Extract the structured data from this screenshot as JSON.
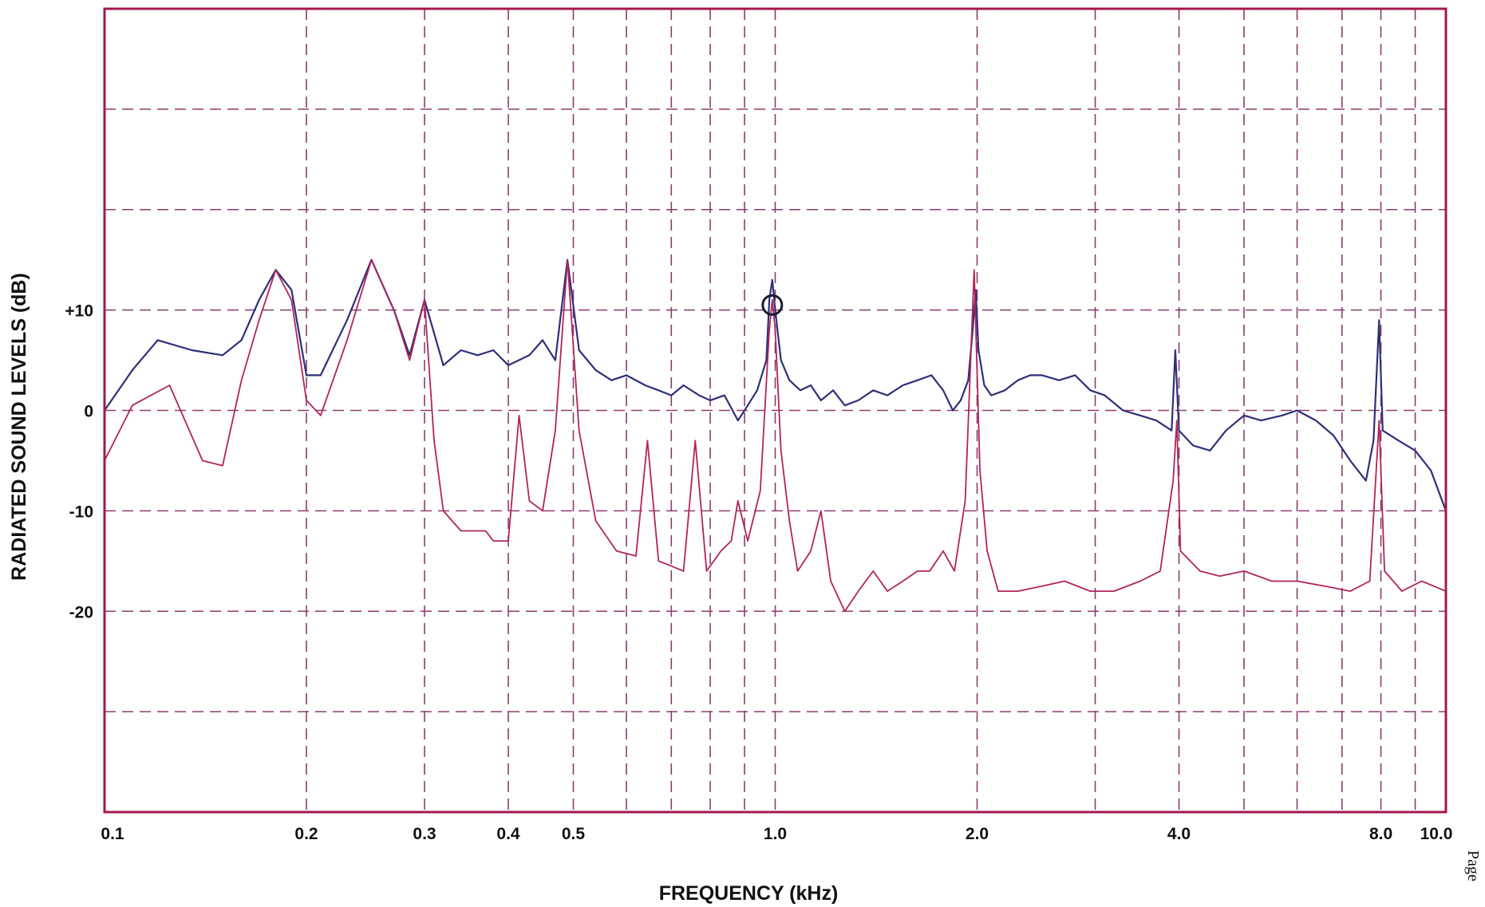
{
  "chart_data": {
    "type": "line",
    "xlabel": "FREQUENCY (kHz)",
    "ylabel": "RADIATED SOUND LEVELS (dB)",
    "x_scale": "log",
    "xlim": [
      0.1,
      10.0
    ],
    "ylim": [
      -40,
      40
    ],
    "grid": true,
    "legend": "none",
    "x_ticks": [
      {
        "value": 0.1,
        "label": "0.1"
      },
      {
        "value": 0.2,
        "label": "0.2"
      },
      {
        "value": 0.3,
        "label": "0.3"
      },
      {
        "value": 0.4,
        "label": "0.4"
      },
      {
        "value": 0.5,
        "label": "0.5"
      },
      {
        "value": 1.0,
        "label": "1.0"
      },
      {
        "value": 2.0,
        "label": "2.0"
      },
      {
        "value": 4.0,
        "label": "4.0"
      },
      {
        "value": 8.0,
        "label": "8.0"
      },
      {
        "value": 10.0,
        "label": "10.0"
      }
    ],
    "x_gridlines": [
      0.2,
      0.3,
      0.4,
      0.5,
      0.6,
      0.7,
      0.8,
      0.9,
      1.0,
      2.0,
      3.0,
      4.0,
      5.0,
      6.0,
      7.0,
      8.0,
      9.0
    ],
    "y_ticks": [
      {
        "value": 10,
        "label": "+10"
      },
      {
        "value": 0,
        "label": "0"
      },
      {
        "value": -10,
        "label": "-10"
      },
      {
        "value": -20,
        "label": "-20"
      }
    ],
    "y_gridlines": [
      30,
      20,
      10,
      0,
      -10,
      -20,
      -30
    ],
    "series": [
      {
        "color": "#2e2f78",
        "points": [
          [
            0.1,
            0
          ],
          [
            0.11,
            4
          ],
          [
            0.12,
            7
          ],
          [
            0.135,
            6
          ],
          [
            0.15,
            5.5
          ],
          [
            0.16,
            7
          ],
          [
            0.17,
            11
          ],
          [
            0.18,
            14
          ],
          [
            0.19,
            12
          ],
          [
            0.2,
            3.5
          ],
          [
            0.21,
            3.5
          ],
          [
            0.23,
            9
          ],
          [
            0.25,
            15
          ],
          [
            0.27,
            10
          ],
          [
            0.285,
            5.5
          ],
          [
            0.3,
            11
          ],
          [
            0.32,
            4.5
          ],
          [
            0.34,
            6
          ],
          [
            0.36,
            5.5
          ],
          [
            0.38,
            6
          ],
          [
            0.4,
            4.5
          ],
          [
            0.43,
            5.5
          ],
          [
            0.45,
            7
          ],
          [
            0.47,
            5
          ],
          [
            0.49,
            15
          ],
          [
            0.51,
            6
          ],
          [
            0.54,
            4
          ],
          [
            0.57,
            3
          ],
          [
            0.6,
            3.5
          ],
          [
            0.64,
            2.5
          ],
          [
            0.67,
            2
          ],
          [
            0.7,
            1.5
          ],
          [
            0.73,
            2.5
          ],
          [
            0.77,
            1.5
          ],
          [
            0.8,
            1
          ],
          [
            0.84,
            1.5
          ],
          [
            0.88,
            -1
          ],
          [
            0.91,
            0.5
          ],
          [
            0.94,
            2
          ],
          [
            0.97,
            5
          ],
          [
            0.98,
            11
          ],
          [
            0.99,
            13
          ],
          [
            1.0,
            10
          ],
          [
            1.02,
            5
          ],
          [
            1.05,
            3
          ],
          [
            1.09,
            2
          ],
          [
            1.13,
            2.5
          ],
          [
            1.17,
            1
          ],
          [
            1.22,
            2
          ],
          [
            1.27,
            0.5
          ],
          [
            1.33,
            1
          ],
          [
            1.4,
            2
          ],
          [
            1.47,
            1.5
          ],
          [
            1.55,
            2.5
          ],
          [
            1.63,
            3
          ],
          [
            1.71,
            3.5
          ],
          [
            1.78,
            2
          ],
          [
            1.84,
            0
          ],
          [
            1.89,
            1
          ],
          [
            1.94,
            3
          ],
          [
            1.97,
            8
          ],
          [
            1.99,
            12
          ],
          [
            2.01,
            6
          ],
          [
            2.05,
            2.5
          ],
          [
            2.1,
            1.5
          ],
          [
            2.2,
            2
          ],
          [
            2.3,
            3
          ],
          [
            2.4,
            3.5
          ],
          [
            2.5,
            3.5
          ],
          [
            2.65,
            3
          ],
          [
            2.8,
            3.5
          ],
          [
            2.95,
            2
          ],
          [
            3.1,
            1.5
          ],
          [
            3.3,
            0
          ],
          [
            3.5,
            -0.5
          ],
          [
            3.7,
            -1
          ],
          [
            3.9,
            -2
          ],
          [
            3.95,
            6
          ],
          [
            4.0,
            -2
          ],
          [
            4.2,
            -3.5
          ],
          [
            4.45,
            -4
          ],
          [
            4.7,
            -2
          ],
          [
            5.0,
            -0.5
          ],
          [
            5.3,
            -1
          ],
          [
            5.7,
            -0.5
          ],
          [
            6.0,
            0
          ],
          [
            6.4,
            -1
          ],
          [
            6.8,
            -2.5
          ],
          [
            7.2,
            -5
          ],
          [
            7.6,
            -7
          ],
          [
            7.8,
            -3
          ],
          [
            7.95,
            9
          ],
          [
            8.05,
            -2
          ],
          [
            8.5,
            -3
          ],
          [
            9.0,
            -4
          ],
          [
            9.5,
            -6
          ],
          [
            10.0,
            -10
          ]
        ]
      },
      {
        "color": "#b0245c",
        "points": [
          [
            0.1,
            -5
          ],
          [
            0.11,
            0.5
          ],
          [
            0.125,
            2.5
          ],
          [
            0.14,
            -5
          ],
          [
            0.15,
            -5.5
          ],
          [
            0.16,
            3
          ],
          [
            0.17,
            9
          ],
          [
            0.18,
            14
          ],
          [
            0.19,
            11
          ],
          [
            0.2,
            1
          ],
          [
            0.21,
            -0.5
          ],
          [
            0.23,
            7
          ],
          [
            0.25,
            15
          ],
          [
            0.27,
            10
          ],
          [
            0.285,
            5
          ],
          [
            0.3,
            11
          ],
          [
            0.31,
            -3
          ],
          [
            0.32,
            -10
          ],
          [
            0.34,
            -12
          ],
          [
            0.37,
            -12
          ],
          [
            0.38,
            -13
          ],
          [
            0.4,
            -13
          ],
          [
            0.415,
            -0.5
          ],
          [
            0.43,
            -9
          ],
          [
            0.45,
            -10
          ],
          [
            0.47,
            -2
          ],
          [
            0.49,
            15
          ],
          [
            0.51,
            -2
          ],
          [
            0.54,
            -11
          ],
          [
            0.58,
            -14
          ],
          [
            0.62,
            -14.5
          ],
          [
            0.645,
            -3
          ],
          [
            0.67,
            -15
          ],
          [
            0.7,
            -15.5
          ],
          [
            0.73,
            -16
          ],
          [
            0.76,
            -3
          ],
          [
            0.79,
            -16
          ],
          [
            0.83,
            -14
          ],
          [
            0.86,
            -13
          ],
          [
            0.88,
            -9
          ],
          [
            0.91,
            -13
          ],
          [
            0.95,
            -8
          ],
          [
            0.98,
            8
          ],
          [
            0.99,
            11
          ],
          [
            1.0,
            8
          ],
          [
            1.02,
            -4
          ],
          [
            1.05,
            -11
          ],
          [
            1.08,
            -16
          ],
          [
            1.13,
            -14
          ],
          [
            1.17,
            -10
          ],
          [
            1.21,
            -17
          ],
          [
            1.27,
            -20
          ],
          [
            1.33,
            -18
          ],
          [
            1.4,
            -16
          ],
          [
            1.47,
            -18
          ],
          [
            1.55,
            -17
          ],
          [
            1.63,
            -16
          ],
          [
            1.7,
            -16
          ],
          [
            1.78,
            -14
          ],
          [
            1.85,
            -16
          ],
          [
            1.92,
            -9
          ],
          [
            1.98,
            14
          ],
          [
            2.02,
            -6
          ],
          [
            2.07,
            -14
          ],
          [
            2.15,
            -18
          ],
          [
            2.3,
            -18
          ],
          [
            2.5,
            -17.5
          ],
          [
            2.7,
            -17
          ],
          [
            2.95,
            -18
          ],
          [
            3.2,
            -18
          ],
          [
            3.5,
            -17
          ],
          [
            3.75,
            -16
          ],
          [
            3.92,
            -7
          ],
          [
            3.97,
            -1
          ],
          [
            4.02,
            -14
          ],
          [
            4.3,
            -16
          ],
          [
            4.6,
            -16.5
          ],
          [
            5.0,
            -16
          ],
          [
            5.5,
            -17
          ],
          [
            6.0,
            -17
          ],
          [
            6.6,
            -17.5
          ],
          [
            7.2,
            -18
          ],
          [
            7.7,
            -17
          ],
          [
            7.95,
            -1
          ],
          [
            8.1,
            -16
          ],
          [
            8.6,
            -18
          ],
          [
            9.2,
            -17
          ],
          [
            10.0,
            -18
          ]
        ]
      }
    ],
    "annotations": [
      {
        "type": "circle-marker",
        "x": 0.99,
        "y": 10.5
      }
    ]
  },
  "page_edge_text": "Page"
}
